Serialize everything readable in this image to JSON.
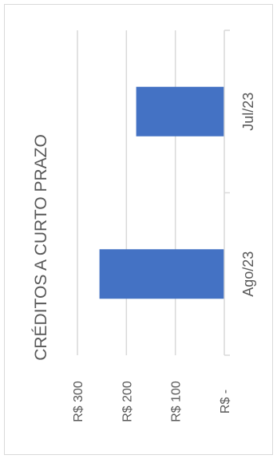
{
  "chart_data": {
    "type": "bar",
    "orientation": "horizontal",
    "rotated": "90deg-clockwise",
    "title": "CRÉDITOS A CURTO PRAZO",
    "categories": [
      "Ago/23",
      "Jul/23"
    ],
    "values": [
      255,
      180
    ],
    "value_ticks": [
      "R$ 300",
      "R$ 200",
      "R$ 100",
      "R$ -"
    ],
    "value_tick_values": [
      300,
      200,
      100,
      0
    ],
    "ylim": [
      0,
      300
    ],
    "grid": true,
    "bar_color": "#4472c4",
    "grid_color": "#d9d9d9",
    "xlabel": "",
    "ylabel": ""
  }
}
